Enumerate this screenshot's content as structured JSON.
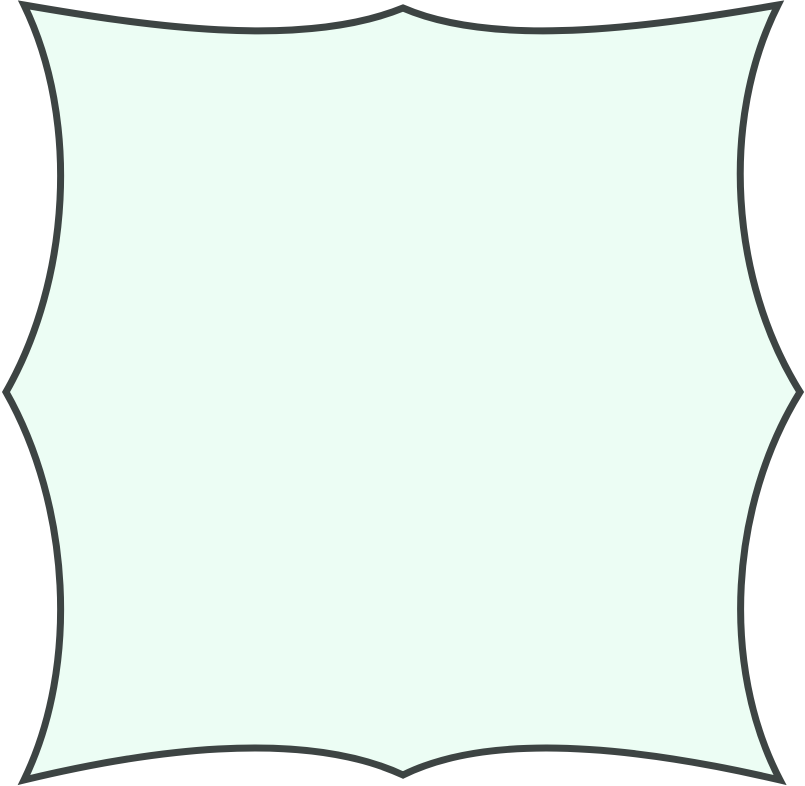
{
  "shape": {
    "kind": "scalloped-square-frame",
    "fill_color": "#ecfdf4",
    "stroke_color": "#3d4443"
  }
}
